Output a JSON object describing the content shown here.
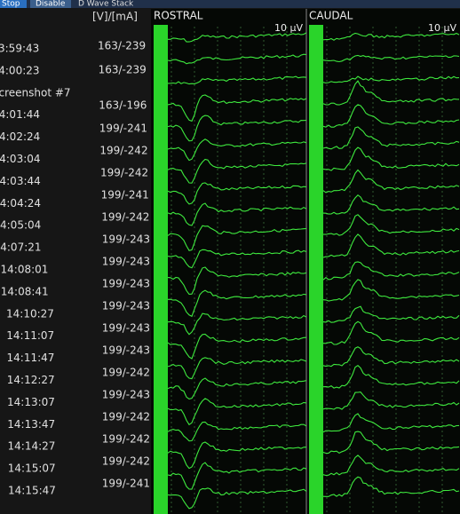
{
  "toolbar": {
    "buttons": [
      "Stop",
      "Disable",
      "D Wave Stack"
    ]
  },
  "table": {
    "header": "[V]/[mA]",
    "times": [
      "3:59:43",
      "4:00:23",
      "creenshot #7",
      "4:01:44",
      "4:02:24",
      "4:03:04",
      "4:03:44",
      "4:04:24",
      "4:05:04",
      "4:07:21",
      "14:08:01",
      "14:08:41",
      "14:10:27",
      "14:11:07",
      "14:11:47",
      "14:12:27",
      "14:13:07",
      "14:13:47",
      "14:14:27",
      "14:15:07",
      "14:15:47"
    ],
    "readings": [
      "163/-239",
      "163/-239",
      "163/-196",
      "199/-241",
      "199/-242",
      "199/-242",
      "199/-241",
      "199/-242",
      "199/-243",
      "199/-243",
      "199/-243",
      "199/-243",
      "199/-243",
      "199/-243",
      "199/-242",
      "199/-243",
      "199/-242",
      "199/-242",
      "199/-242",
      "199/-241"
    ]
  },
  "panels": [
    {
      "title": "ROSTRAL",
      "scale": "10 µV"
    },
    {
      "title": "CAUDAL",
      "scale": "10 µV"
    }
  ]
}
